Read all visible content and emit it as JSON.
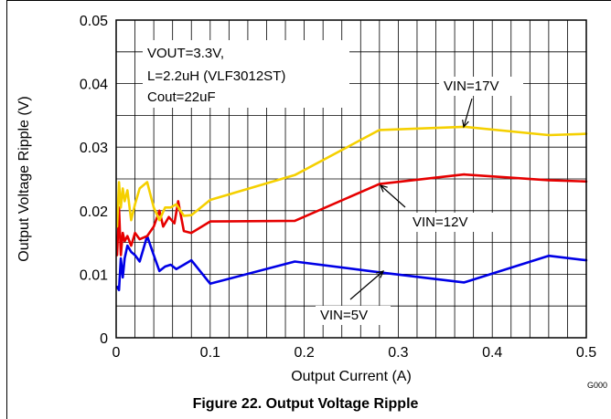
{
  "figure": {
    "caption": "Figure 22. Output Voltage Ripple",
    "code": "G000"
  },
  "chart_data": {
    "type": "line",
    "xlabel": "Output Current (A)",
    "ylabel": "Output Voltage Ripple (V)",
    "xlim": [
      0,
      0.5
    ],
    "ylim": [
      0,
      0.05
    ],
    "xticks": [
      "0",
      "0.1",
      "0.2",
      "0.3",
      "0.4",
      "0.5"
    ],
    "yticks": [
      "0",
      "0.01",
      "0.02",
      "0.03",
      "0.04",
      "0.05"
    ],
    "grid": true,
    "conditions": [
      "VOUT=3.3V,",
      "L=2.2uH (VLF3012ST)",
      "Cout=22uF"
    ],
    "series": [
      {
        "name": "VIN=17V",
        "color": "#f5d000",
        "x": [
          0.001,
          0.003,
          0.005,
          0.007,
          0.009,
          0.012,
          0.016,
          0.02,
          0.025,
          0.033,
          0.04,
          0.046,
          0.052,
          0.058,
          0.064,
          0.072,
          0.08,
          0.1,
          0.19,
          0.28,
          0.37,
          0.46,
          0.5
        ],
        "values": [
          0.0175,
          0.0245,
          0.0205,
          0.0235,
          0.0215,
          0.0232,
          0.0185,
          0.021,
          0.0235,
          0.0245,
          0.0205,
          0.0185,
          0.0205,
          0.0205,
          0.021,
          0.0192,
          0.0193,
          0.0217,
          0.0256,
          0.0327,
          0.0332,
          0.0319,
          0.0321
        ]
      },
      {
        "name": "VIN=12V",
        "color": "#e60000",
        "x": [
          0.001,
          0.003,
          0.005,
          0.007,
          0.009,
          0.012,
          0.016,
          0.02,
          0.025,
          0.033,
          0.04,
          0.046,
          0.05,
          0.056,
          0.062,
          0.066,
          0.072,
          0.08,
          0.1,
          0.19,
          0.28,
          0.37,
          0.46,
          0.5
        ],
        "values": [
          0.013,
          0.0205,
          0.013,
          0.0165,
          0.0152,
          0.016,
          0.0145,
          0.0165,
          0.0155,
          0.016,
          0.0175,
          0.02,
          0.0175,
          0.019,
          0.018,
          0.0215,
          0.0168,
          0.0165,
          0.0183,
          0.0184,
          0.0242,
          0.0257,
          0.0248,
          0.0246
        ]
      },
      {
        "name": "VIN=5V",
        "color": "#0000e6",
        "x": [
          0.001,
          0.003,
          0.005,
          0.007,
          0.009,
          0.012,
          0.016,
          0.02,
          0.025,
          0.033,
          0.04,
          0.046,
          0.052,
          0.058,
          0.064,
          0.072,
          0.08,
          0.1,
          0.19,
          0.28,
          0.37,
          0.46,
          0.5
        ],
        "values": [
          0.008,
          0.0075,
          0.0125,
          0.0095,
          0.0125,
          0.0145,
          0.0135,
          0.013,
          0.012,
          0.016,
          0.013,
          0.0105,
          0.0112,
          0.0115,
          0.0108,
          0.0115,
          0.0122,
          0.0085,
          0.012,
          0.0103,
          0.0087,
          0.0129,
          0.0122
        ]
      }
    ]
  }
}
